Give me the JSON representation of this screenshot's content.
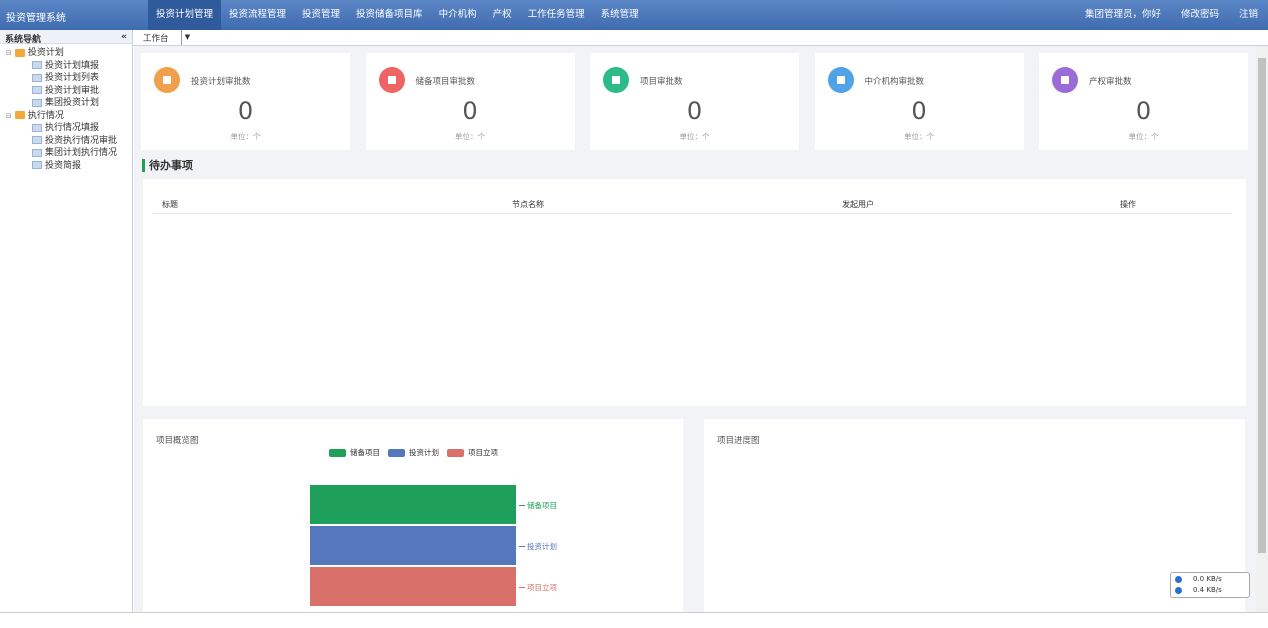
{
  "header": {
    "title": "投资管理系统",
    "nav": [
      "投资计划管理",
      "投资流程管理",
      "投资管理",
      "投资储备项目库",
      "中介机构",
      "产权",
      "工作任务管理",
      "系统管理"
    ],
    "user": "集团管理员，你好",
    "links": [
      "修改密码",
      "注销"
    ]
  },
  "sidebar": {
    "title": "系统导航",
    "collapse": "«",
    "tree": [
      {
        "label": "投资计划",
        "children": [
          "投资计划填报",
          "投资计划列表",
          "投资计划审批",
          "集团投资计划"
        ]
      },
      {
        "label": "执行情况",
        "children": [
          "执行情况填报",
          "投资执行情况审批",
          "集团计划执行情况",
          "投资简报"
        ]
      }
    ]
  },
  "tab": "工作台",
  "cards": [
    {
      "label": "投资计划审批数",
      "value": 0,
      "unit": "单位：个",
      "color": "#f0a04b"
    },
    {
      "label": "储备项目审批数",
      "value": 0,
      "unit": "单位：个",
      "color": "#ef6464"
    },
    {
      "label": "项目审批数",
      "value": 0,
      "unit": "单位：个",
      "color": "#2dbb87"
    },
    {
      "label": "中介机构审批数",
      "value": 0,
      "unit": "单位：个",
      "color": "#4fa3e6"
    },
    {
      "label": "产权审批数",
      "value": 0,
      "unit": "单位：个",
      "color": "#9b6bd8"
    }
  ],
  "todo": {
    "title": "待办事项",
    "columns": [
      "标题",
      "节点名称",
      "发起用户",
      "操作"
    ]
  },
  "overview": {
    "title": "项目概览图",
    "items": [
      {
        "name": "储备项目",
        "color": "#1fa05a"
      },
      {
        "name": "投资计划",
        "color": "#5577bb"
      },
      {
        "name": "项目立项",
        "color": "#d9706a"
      }
    ]
  },
  "progress": {
    "title": "项目进度图"
  },
  "netspeed": [
    "0.0 KB/s",
    "0.4 KB/s"
  ]
}
